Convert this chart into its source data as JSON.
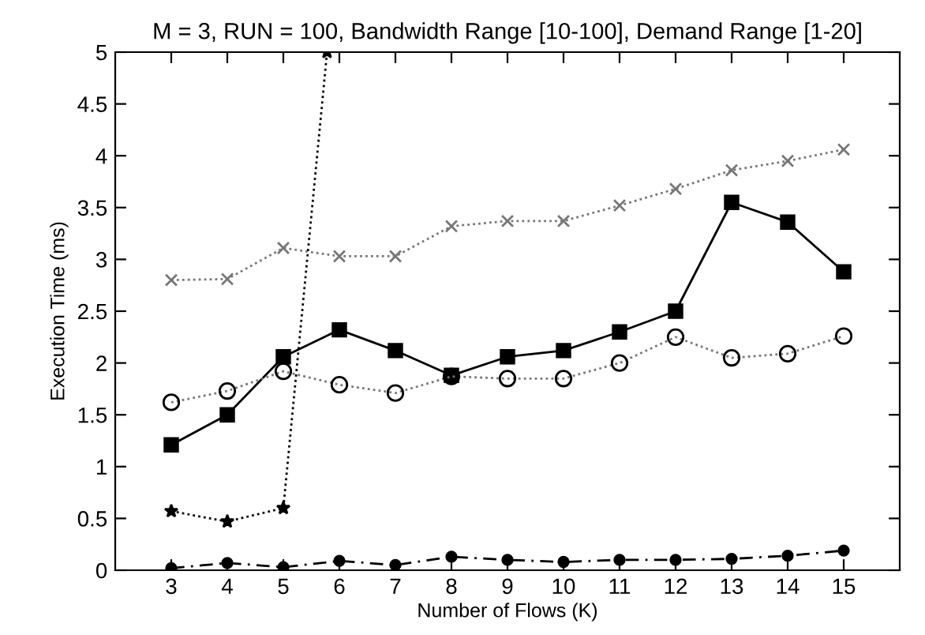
{
  "chart_data": {
    "type": "line",
    "title": "M = 3, RUN = 100, Bandwidth Range [10-100], Demand Range [1-20]",
    "xlabel": "Number of Flows (K)",
    "ylabel": "Execution Time (ms)",
    "x": [
      3,
      4,
      5,
      6,
      7,
      8,
      9,
      10,
      11,
      12,
      13,
      14,
      15
    ],
    "xlim": [
      2,
      16
    ],
    "xticks": [
      3,
      4,
      5,
      6,
      7,
      8,
      9,
      10,
      11,
      12,
      13,
      14,
      15
    ],
    "ylim": [
      0,
      5
    ],
    "yticks": [
      0,
      0.5,
      1,
      1.5,
      2,
      2.5,
      3,
      3.5,
      4,
      4.5,
      5
    ],
    "grid": false,
    "legend": false,
    "series": [
      {
        "color": "#777777",
        "marker": "cross",
        "line_style": "dotted",
        "values": [
          2.8,
          2.81,
          3.11,
          3.03,
          3.03,
          3.32,
          3.37,
          3.37,
          3.52,
          3.68,
          3.86,
          3.95,
          4.06
        ]
      },
      {
        "color": "#000000",
        "marker": "square",
        "line_style": "solid",
        "values": [
          1.21,
          1.5,
          2.06,
          2.32,
          2.12,
          1.88,
          2.06,
          2.12,
          2.3,
          2.5,
          3.55,
          3.36,
          2.88
        ]
      },
      {
        "color": "#777777",
        "marker": "circle",
        "line_style": "dotted",
        "values": [
          1.62,
          1.73,
          1.92,
          1.79,
          1.71,
          1.87,
          1.85,
          1.85,
          2.0,
          2.25,
          2.05,
          2.09,
          2.26
        ]
      },
      {
        "color": "#000000",
        "marker": "star",
        "line_style": "dotted",
        "x": [
          3,
          4,
          5,
          5.78
        ],
        "values": [
          0.57,
          0.47,
          0.6,
          5
        ]
      },
      {
        "color": "#000000",
        "marker": "circle",
        "line_style": "dashed",
        "values": [
          0.02,
          0.07,
          0.03,
          0.09,
          0.05,
          0.13,
          0.1,
          0.08,
          0.1,
          0.1,
          0.11,
          0.14,
          0.19
        ]
      }
    ]
  }
}
